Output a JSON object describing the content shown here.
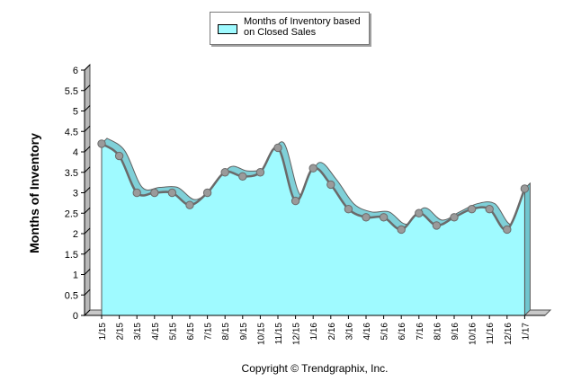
{
  "legend": {
    "label": "Months of Inventory based on Closed Sales"
  },
  "footer": {
    "copyright": "Copyright © Trendgraphix, Inc."
  },
  "chart_data": {
    "type": "area",
    "title": "",
    "xlabel": "",
    "ylabel": "Months of Inventory",
    "ylim": [
      0,
      6
    ],
    "yticks": [
      "0",
      "0.5",
      "1",
      "1.5",
      "2",
      "2.5",
      "3",
      "3.5",
      "4",
      "4.5",
      "5",
      "5.5",
      "6"
    ],
    "grid": false,
    "legend_position": "top-center",
    "categories": [
      "1/15",
      "2/15",
      "3/15",
      "4/15",
      "5/15",
      "6/15",
      "7/15",
      "8/15",
      "9/15",
      "10/15",
      "11/15",
      "12/15",
      "1/16",
      "2/16",
      "3/16",
      "4/16",
      "5/16",
      "6/16",
      "7/16",
      "8/16",
      "9/16",
      "10/16",
      "11/16",
      "12/16",
      "1/17"
    ],
    "series": [
      {
        "name": "Months of Inventory based on Closed Sales",
        "color": "#9ffaff",
        "values": [
          4.2,
          3.9,
          3.0,
          3.0,
          3.0,
          2.7,
          3.0,
          3.5,
          3.4,
          3.5,
          4.1,
          2.8,
          3.6,
          3.2,
          2.6,
          2.4,
          2.4,
          2.1,
          2.5,
          2.2,
          2.4,
          2.6,
          2.6,
          2.1,
          3.1
        ]
      }
    ]
  }
}
